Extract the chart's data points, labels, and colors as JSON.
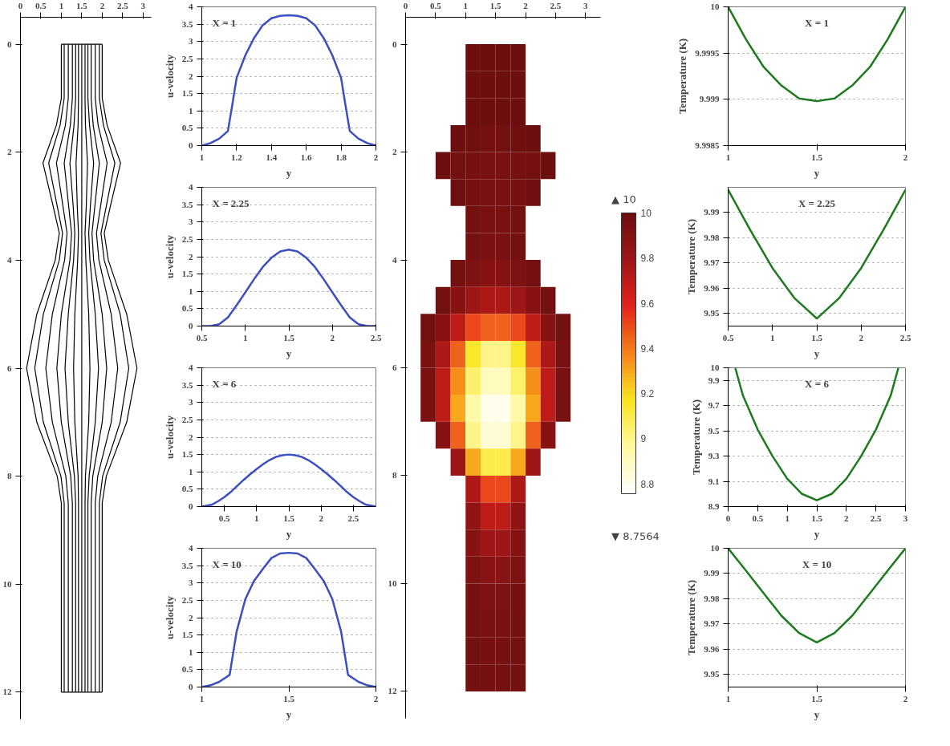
{
  "chart_data": [
    {
      "type": "line",
      "orientation": "horizontal",
      "xlim": [
        0,
        3.2
      ],
      "ylim": [
        12.5,
        -0.5
      ],
      "xticks": [
        0,
        0.5,
        1,
        1.5,
        2,
        2.5,
        3
      ],
      "yticks": [
        0,
        2,
        4,
        6,
        8,
        10,
        12
      ],
      "series": [
        {
          "color": "#000000",
          "x": [
            0,
            1,
            1.5,
            2.2,
            3,
            3.5,
            4,
            5,
            6,
            7,
            8,
            8.5,
            10,
            12
          ],
          "values": [
            1,
            1,
            0.88,
            0.55,
            0.8,
            0.95,
            0.85,
            0.4,
            0.15,
            0.4,
            0.9,
            1,
            1,
            1
          ]
        },
        {
          "color": "#000000",
          "x": [
            0,
            1,
            1.5,
            2.2,
            3,
            3.5,
            4,
            5,
            6,
            7,
            8,
            8.5,
            10,
            12
          ],
          "values": [
            2,
            2,
            2.12,
            2.45,
            2.2,
            2.05,
            2.15,
            2.6,
            2.85,
            2.6,
            2.1,
            2,
            2,
            2
          ]
        },
        {
          "color": "#000000",
          "x": [
            0,
            0
          ],
          "values": [
            1,
            2
          ]
        },
        {
          "color": "#000000",
          "x": [
            12,
            12
          ],
          "values": [
            1,
            2
          ]
        },
        {
          "color": "#000000",
          "x": [
            0,
            1,
            1.5,
            2.2,
            3,
            3.5,
            4,
            5,
            6,
            7,
            8,
            8.5,
            10,
            12
          ],
          "values": [
            1.07,
            1.07,
            0.97,
            0.69,
            0.9,
            1.03,
            0.95,
            0.56,
            0.35,
            0.56,
            0.99,
            1.07,
            1.07,
            1.07
          ]
        },
        {
          "color": "#000000",
          "x": [
            0,
            1,
            1.5,
            2.2,
            3,
            3.5,
            4,
            5,
            6,
            7,
            8,
            8.5,
            10,
            12
          ],
          "values": [
            1.93,
            1.93,
            2.03,
            2.31,
            2.1,
            1.97,
            2.05,
            2.44,
            2.65,
            2.44,
            2.01,
            1.93,
            1.93,
            1.93
          ]
        },
        {
          "color": "#000000",
          "x": [
            0,
            1,
            1.5,
            2.2,
            3,
            3.5,
            4,
            5,
            6,
            7,
            8,
            8.5,
            10,
            12
          ],
          "values": [
            1.17,
            1.17,
            1.1,
            0.88,
            1.04,
            1.14,
            1.08,
            0.78,
            0.62,
            0.78,
            1.11,
            1.17,
            1.17,
            1.17
          ]
        },
        {
          "color": "#000000",
          "x": [
            0,
            1,
            1.5,
            2.2,
            3,
            3.5,
            4,
            5,
            6,
            7,
            8,
            8.5,
            10,
            12
          ],
          "values": [
            1.83,
            1.83,
            1.9,
            2.12,
            1.96,
            1.86,
            1.92,
            2.22,
            2.38,
            2.22,
            1.89,
            1.83,
            1.83,
            1.83
          ]
        },
        {
          "color": "#000000",
          "x": [
            0,
            1,
            1.5,
            2.2,
            3,
            3.5,
            4,
            5,
            6,
            7,
            8,
            8.5,
            10,
            12
          ],
          "values": [
            1.27,
            1.27,
            1.22,
            1.07,
            1.18,
            1.25,
            1.21,
            1.0,
            0.89,
            1.0,
            1.23,
            1.27,
            1.27,
            1.27
          ]
        },
        {
          "color": "#000000",
          "x": [
            0,
            1,
            1.5,
            2.2,
            3,
            3.5,
            4,
            5,
            6,
            7,
            8,
            8.5,
            10,
            12
          ],
          "values": [
            1.73,
            1.73,
            1.78,
            1.93,
            1.82,
            1.75,
            1.79,
            2.0,
            2.11,
            2.0,
            1.77,
            1.73,
            1.73,
            1.73
          ]
        },
        {
          "color": "#000000",
          "x": [
            0,
            1,
            1.5,
            2.2,
            3,
            3.5,
            4,
            5,
            6,
            7,
            8,
            8.5,
            10,
            12
          ],
          "values": [
            1.35,
            1.35,
            1.31,
            1.21,
            1.29,
            1.33,
            1.3,
            1.17,
            1.09,
            1.17,
            1.32,
            1.35,
            1.35,
            1.35
          ]
        },
        {
          "color": "#000000",
          "x": [
            0,
            1,
            1.5,
            2.2,
            3,
            3.5,
            4,
            5,
            6,
            7,
            8,
            8.5,
            10,
            12
          ],
          "values": [
            1.65,
            1.65,
            1.69,
            1.79,
            1.71,
            1.67,
            1.7,
            1.83,
            1.91,
            1.83,
            1.68,
            1.65,
            1.65,
            1.65
          ]
        },
        {
          "color": "#000000",
          "x": [
            0,
            1,
            1.5,
            2.2,
            3,
            3.5,
            4,
            5,
            6,
            7,
            8,
            8.5,
            10,
            12
          ],
          "values": [
            1.42,
            1.42,
            1.41,
            1.36,
            1.39,
            1.42,
            1.4,
            1.33,
            1.3,
            1.33,
            1.41,
            1.42,
            1.42,
            1.42
          ]
        },
        {
          "color": "#000000",
          "x": [
            0,
            1,
            1.5,
            2.2,
            3,
            3.5,
            4,
            5,
            6,
            7,
            8,
            8.5,
            10,
            12
          ],
          "values": [
            1.58,
            1.58,
            1.59,
            1.64,
            1.61,
            1.58,
            1.6,
            1.67,
            1.7,
            1.67,
            1.59,
            1.58,
            1.58,
            1.58
          ]
        },
        {
          "color": "#000000",
          "x": [
            0,
            12
          ],
          "values": [
            1.5,
            1.5
          ]
        }
      ]
    },
    {
      "type": "line",
      "xlabel": "y",
      "ylabel": "u-velocity",
      "annotations": [
        "X = 1"
      ],
      "xlim": [
        1,
        2
      ],
      "ylim": [
        0,
        4
      ],
      "xticks": [
        1,
        1.2,
        1.4,
        1.6,
        1.8,
        2
      ],
      "yticks": [
        0,
        0.5,
        1,
        1.5,
        2,
        2.5,
        3,
        3.5,
        4
      ],
      "grid": "y",
      "series": [
        {
          "color": "#3b4fc0",
          "x": [
            1,
            1.05,
            1.1,
            1.15,
            1.175,
            1.2,
            1.25,
            1.3,
            1.35,
            1.4,
            1.45,
            1.5,
            1.55,
            1.6,
            1.65,
            1.7,
            1.75,
            1.8,
            1.825,
            1.85,
            1.9,
            1.95,
            2
          ],
          "values": [
            0,
            0.07,
            0.2,
            0.42,
            1.17,
            1.95,
            2.6,
            3.1,
            3.47,
            3.67,
            3.74,
            3.76,
            3.74,
            3.67,
            3.47,
            3.1,
            2.6,
            1.95,
            1.17,
            0.42,
            0.2,
            0.07,
            0
          ]
        }
      ]
    },
    {
      "type": "line",
      "xlabel": "y",
      "ylabel": "u-velocity",
      "annotations": [
        "X = 2.25"
      ],
      "xlim": [
        0.5,
        2.5
      ],
      "ylim": [
        0,
        4
      ],
      "xticks": [
        0.5,
        1,
        1.5,
        2,
        2.5
      ],
      "yticks": [
        0,
        0.5,
        1,
        1.5,
        2,
        2.5,
        3,
        3.5,
        4
      ],
      "grid": "y",
      "series": [
        {
          "color": "#3b4fc0",
          "x": [
            0.5,
            0.6,
            0.7,
            0.8,
            0.9,
            1.0,
            1.1,
            1.2,
            1.3,
            1.4,
            1.5,
            1.6,
            1.7,
            1.8,
            1.9,
            2.0,
            2.1,
            2.2,
            2.3,
            2.4,
            2.5
          ],
          "values": [
            0,
            0,
            0.05,
            0.25,
            0.6,
            0.97,
            1.35,
            1.7,
            1.97,
            2.15,
            2.2,
            2.15,
            1.97,
            1.7,
            1.35,
            0.97,
            0.6,
            0.25,
            0.05,
            0,
            0
          ]
        }
      ]
    },
    {
      "type": "line",
      "xlabel": "y",
      "ylabel": "u-velocity",
      "annotations": [
        "X = 6"
      ],
      "xlim": [
        0.15,
        2.85
      ],
      "ylim": [
        0,
        4
      ],
      "xticks": [
        0.5,
        1,
        1.5,
        2,
        2.5
      ],
      "yticks": [
        0,
        0.5,
        1,
        1.5,
        2,
        2.5,
        3,
        3.5,
        4
      ],
      "grid": "y",
      "series": [
        {
          "color": "#3b4fc0",
          "x": [
            0.15,
            0.3,
            0.4,
            0.5,
            0.6,
            0.7,
            0.8,
            0.9,
            1.0,
            1.1,
            1.2,
            1.3,
            1.4,
            1.5,
            1.6,
            1.7,
            1.8,
            1.9,
            2.0,
            2.1,
            2.2,
            2.3,
            2.4,
            2.5,
            2.6,
            2.7,
            2.85
          ],
          "values": [
            0,
            0.05,
            0.15,
            0.27,
            0.42,
            0.6,
            0.77,
            0.93,
            1.08,
            1.22,
            1.34,
            1.43,
            1.48,
            1.5,
            1.48,
            1.43,
            1.34,
            1.22,
            1.08,
            0.93,
            0.77,
            0.6,
            0.42,
            0.27,
            0.15,
            0.05,
            0
          ]
        }
      ]
    },
    {
      "type": "line",
      "xlabel": "y",
      "ylabel": "u-velocity",
      "annotations": [
        "X = 10"
      ],
      "xlim": [
        1,
        2
      ],
      "ylim": [
        0,
        4
      ],
      "xticks": [
        1,
        1.5,
        2
      ],
      "yticks": [
        0,
        0.5,
        1,
        1.5,
        2,
        2.5,
        3,
        3.5,
        4
      ],
      "grid": "y",
      "series": [
        {
          "color": "#3b4fc0",
          "x": [
            1,
            1.05,
            1.1,
            1.16,
            1.2,
            1.25,
            1.3,
            1.35,
            1.4,
            1.45,
            1.5,
            1.55,
            1.6,
            1.65,
            1.7,
            1.75,
            1.8,
            1.84,
            1.9,
            1.95,
            2
          ],
          "values": [
            0,
            0.05,
            0.15,
            0.35,
            1.6,
            2.53,
            3.06,
            3.4,
            3.72,
            3.85,
            3.87,
            3.85,
            3.72,
            3.4,
            3.06,
            2.53,
            1.6,
            0.35,
            0.15,
            0.05,
            0
          ]
        }
      ]
    },
    {
      "type": "scatter",
      "marker": "square",
      "xlim": [
        0,
        3.25
      ],
      "ylim": [
        12.5,
        -0.5
      ],
      "xticks": [
        0,
        0.5,
        1,
        1.5,
        2,
        2.5,
        3
      ],
      "yticks": [
        0,
        2,
        4,
        6,
        8,
        10,
        12
      ],
      "clim": [
        8.7564,
        10
      ],
      "cticks": [
        8.8,
        9,
        9.2,
        9.4,
        9.6,
        9.8,
        10
      ],
      "annotations": [
        "▲ 10",
        "▼ 8.7564"
      ],
      "x": [
        1.125,
        1.375,
        1.625,
        1.875,
        1.125,
        1.375,
        1.625,
        1.875,
        1.125,
        1.375,
        1.625,
        1.875,
        0.875,
        1.125,
        1.375,
        1.625,
        1.875,
        2.125,
        0.625,
        0.875,
        1.125,
        1.375,
        1.625,
        1.875,
        2.125,
        2.375,
        0.875,
        1.125,
        1.375,
        1.625,
        1.875,
        2.125,
        1.125,
        1.375,
        1.625,
        1.875,
        1.125,
        1.375,
        1.625,
        1.875,
        0.875,
        1.125,
        1.375,
        1.625,
        1.875,
        2.125,
        0.625,
        0.875,
        1.125,
        1.375,
        1.625,
        1.875,
        2.125,
        2.375,
        0.375,
        0.625,
        0.875,
        1.125,
        1.375,
        1.625,
        1.875,
        2.125,
        2.375,
        2.625,
        0.375,
        0.625,
        0.875,
        1.125,
        1.375,
        1.625,
        1.875,
        2.125,
        2.375,
        2.625,
        0.375,
        0.625,
        0.875,
        1.125,
        1.375,
        1.625,
        1.875,
        2.125,
        2.375,
        2.625,
        0.375,
        0.625,
        0.875,
        1.125,
        1.375,
        1.625,
        1.875,
        2.125,
        2.375,
        2.625,
        0.625,
        0.875,
        1.125,
        1.375,
        1.625,
        1.875,
        2.125,
        2.375,
        0.875,
        1.125,
        1.375,
        1.625,
        1.875,
        2.125,
        1.125,
        1.375,
        1.625,
        1.875,
        1.125,
        1.375,
        1.625,
        1.875,
        1.125,
        1.375,
        1.625,
        1.875,
        1.125,
        1.375,
        1.625,
        1.875,
        1.125,
        1.375,
        1.625,
        1.875,
        1.125,
        1.375,
        1.625,
        1.875,
        1.125,
        1.375,
        1.625,
        1.875,
        1.125,
        1.375,
        1.625,
        1.875
      ],
      "values": [
        0.25,
        0.25,
        0.25,
        0.25,
        0.75,
        0.75,
        0.75,
        0.75,
        1.25,
        1.25,
        1.25,
        1.25,
        1.75,
        1.75,
        1.75,
        1.75,
        1.75,
        1.75,
        2.25,
        2.25,
        2.25,
        2.25,
        2.25,
        2.25,
        2.25,
        2.25,
        2.75,
        2.75,
        2.75,
        2.75,
        2.75,
        2.75,
        3.25,
        3.25,
        3.25,
        3.25,
        3.75,
        3.75,
        3.75,
        3.75,
        4.25,
        4.25,
        4.25,
        4.25,
        4.25,
        4.25,
        4.75,
        4.75,
        4.75,
        4.75,
        4.75,
        4.75,
        4.75,
        4.75,
        5.25,
        5.25,
        5.25,
        5.25,
        5.25,
        5.25,
        5.25,
        5.25,
        5.25,
        5.25,
        5.75,
        5.75,
        5.75,
        5.75,
        5.75,
        5.75,
        5.75,
        5.75,
        5.75,
        5.75,
        6.25,
        6.25,
        6.25,
        6.25,
        6.25,
        6.25,
        6.25,
        6.25,
        6.25,
        6.25,
        6.75,
        6.75,
        6.75,
        6.75,
        6.75,
        6.75,
        6.75,
        6.75,
        6.75,
        6.75,
        7.25,
        7.25,
        7.25,
        7.25,
        7.25,
        7.25,
        7.25,
        7.25,
        7.75,
        7.75,
        7.75,
        7.75,
        7.75,
        7.75,
        8.25,
        8.25,
        8.25,
        8.25,
        8.75,
        8.75,
        8.75,
        8.75,
        9.25,
        9.25,
        9.25,
        9.25,
        9.75,
        9.75,
        9.75,
        9.75,
        10.25,
        10.25,
        10.25,
        10.25,
        10.75,
        10.75,
        10.75,
        10.75,
        11.25,
        11.25,
        11.25,
        11.25,
        11.75,
        11.75,
        11.75,
        11.75
      ],
      "cvalues": [
        10,
        10,
        10,
        10,
        10,
        10,
        10,
        10,
        10,
        10,
        10,
        10,
        10,
        9.99,
        9.98,
        9.98,
        9.99,
        10,
        10,
        9.98,
        9.96,
        9.95,
        9.95,
        9.96,
        9.98,
        10,
        9.99,
        9.96,
        9.95,
        9.95,
        9.96,
        9.99,
        9.97,
        9.95,
        9.95,
        9.97,
        9.97,
        9.94,
        9.94,
        9.97,
        9.98,
        9.93,
        9.9,
        9.9,
        9.93,
        9.98,
        9.98,
        9.9,
        9.8,
        9.75,
        9.75,
        9.8,
        9.9,
        9.98,
        9.98,
        9.9,
        9.7,
        9.5,
        9.45,
        9.45,
        9.5,
        9.7,
        9.9,
        9.98,
        9.95,
        9.75,
        9.45,
        9.15,
        9.0,
        9.0,
        9.15,
        9.45,
        9.75,
        9.95,
        9.95,
        9.7,
        9.35,
        9.05,
        8.9,
        8.9,
        9.05,
        9.35,
        9.7,
        9.95,
        9.95,
        9.7,
        9.3,
        8.95,
        8.8,
        8.8,
        8.95,
        9.3,
        9.7,
        9.95,
        9.9,
        9.45,
        9.0,
        8.85,
        8.85,
        9.0,
        9.45,
        9.9,
        9.8,
        9.3,
        9.1,
        9.1,
        9.3,
        9.8,
        9.75,
        9.5,
        9.5,
        9.75,
        9.85,
        9.7,
        9.7,
        9.85,
        9.9,
        9.8,
        9.8,
        9.9,
        9.93,
        9.88,
        9.88,
        9.93,
        9.96,
        9.93,
        9.93,
        9.96,
        9.97,
        9.95,
        9.95,
        9.97,
        9.98,
        9.96,
        9.96,
        9.98,
        9.98,
        9.97,
        9.97,
        9.98
      ]
    },
    {
      "type": "line",
      "xlabel": "y",
      "ylabel": "Temperature (K)",
      "annotations": [
        "X = 1"
      ],
      "xlim": [
        1,
        2
      ],
      "ylim": [
        9.9985,
        10
      ],
      "xticks": [
        1,
        1.5,
        2
      ],
      "yticks": [
        9.9985,
        9.999,
        9.9995,
        10
      ],
      "grid": "y",
      "series": [
        {
          "color": "#1e7a1e",
          "x": [
            1,
            1.1,
            1.2,
            1.3,
            1.4,
            1.5,
            1.6,
            1.7,
            1.8,
            1.9,
            2
          ],
          "values": [
            10,
            9.99965,
            9.99935,
            9.99915,
            9.99901,
            9.99898,
            9.99901,
            9.99915,
            9.99935,
            9.99965,
            10
          ]
        }
      ]
    },
    {
      "type": "line",
      "xlabel": "y",
      "ylabel": "Temperature (K)",
      "annotations": [
        "X = 2.25"
      ],
      "xlim": [
        0.5,
        2.5
      ],
      "ylim": [
        9.945,
        10
      ],
      "xticks": [
        0.5,
        1,
        1.5,
        2,
        2.5
      ],
      "yticks": [
        9.95,
        9.96,
        9.97,
        9.98,
        9.99
      ],
      "grid": "y",
      "series": [
        {
          "color": "#1e7a1e",
          "x": [
            0.5,
            0.75,
            1.0,
            1.25,
            1.5,
            1.75,
            2.0,
            2.25,
            2.5
          ],
          "values": [
            9.999,
            9.983,
            9.968,
            9.956,
            9.948,
            9.956,
            9.968,
            9.983,
            9.999
          ]
        }
      ]
    },
    {
      "type": "line",
      "xlabel": "y",
      "ylabel": "Temperature (K)",
      "annotations": [
        "X = 6"
      ],
      "xlim": [
        0,
        3
      ],
      "ylim": [
        8.9,
        10
      ],
      "xticks": [
        0,
        0.5,
        1,
        1.5,
        2,
        2.5,
        3
      ],
      "yticks": [
        8.9,
        9.1,
        9.3,
        9.5,
        9.7,
        9.9,
        10
      ],
      "grid": "y",
      "series": [
        {
          "color": "#1e7a1e",
          "x": [
            0.12,
            0.25,
            0.5,
            0.75,
            1.0,
            1.25,
            1.5,
            1.75,
            2.0,
            2.25,
            2.5,
            2.75,
            2.88
          ],
          "values": [
            10,
            9.78,
            9.51,
            9.3,
            9.12,
            9.0,
            8.95,
            9.0,
            9.12,
            9.3,
            9.51,
            9.78,
            10
          ]
        }
      ]
    },
    {
      "type": "line",
      "xlabel": "y",
      "ylabel": "Temperature (K)",
      "annotations": [
        "X = 10"
      ],
      "xlim": [
        1,
        2
      ],
      "ylim": [
        9.945,
        10
      ],
      "xticks": [
        1,
        1.5,
        2
      ],
      "yticks": [
        9.95,
        9.96,
        9.97,
        9.98,
        9.99,
        10
      ],
      "grid": "y",
      "series": [
        {
          "color": "#1e7a1e",
          "x": [
            1,
            1.1,
            1.2,
            1.3,
            1.4,
            1.5,
            1.6,
            1.7,
            1.8,
            1.9,
            2
          ],
          "values": [
            10,
            9.9912,
            9.9822,
            9.9733,
            9.9664,
            9.9627,
            9.9664,
            9.9733,
            9.9822,
            9.9912,
            10
          ]
        }
      ]
    }
  ]
}
